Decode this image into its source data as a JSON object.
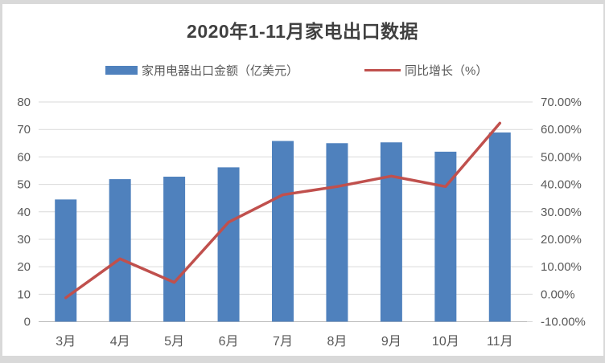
{
  "title": "2020年1-11月家电出口数据",
  "legend": [
    {
      "label": "家用电器出口金额（亿美元）",
      "type": "bar",
      "color": "#4f81bd"
    },
    {
      "label": "同比增长（%）",
      "type": "line",
      "color": "#c0504d"
    }
  ],
  "colors": {
    "bar": "#4f81bd",
    "line": "#c0504d",
    "gridline": "#d9d9d9",
    "axis_baseline": "#bfbfbf",
    "axis_text": "#595959",
    "title_text": "#404040",
    "frame": "#d9d9d9",
    "background": "#ffffff"
  },
  "chart_data": {
    "type": "bar",
    "subtype": "combo-bar-line-dual-axis",
    "title": "2020年1-11月家电出口数据",
    "categories": [
      "3月",
      "4月",
      "5月",
      "6月",
      "7月",
      "8月",
      "9月",
      "10月",
      "11月"
    ],
    "series": [
      {
        "name": "家用电器出口金额（亿美元）",
        "type": "bar",
        "axis": "left",
        "color": "#4f81bd",
        "values": [
          44.5,
          51.9,
          52.8,
          56.2,
          65.8,
          65.0,
          65.3,
          61.9,
          68.9
        ]
      },
      {
        "name": "同比增长（%）",
        "type": "line",
        "axis": "right",
        "color": "#c0504d",
        "values": [
          -1.3,
          12.9,
          4.3,
          26.2,
          36.2,
          39.2,
          43.0,
          39.2,
          62.3
        ]
      }
    ],
    "left_axis": {
      "min": 0,
      "max": 80,
      "step": 10,
      "tick_labels": [
        "0",
        "10",
        "20",
        "30",
        "40",
        "50",
        "60",
        "70",
        "80"
      ]
    },
    "right_axis": {
      "min": -10,
      "max": 70,
      "step": 10,
      "tick_labels": [
        "-10.00%",
        "0.00%",
        "10.00%",
        "20.00%",
        "30.00%",
        "40.00%",
        "50.00%",
        "60.00%",
        "70.00%"
      ]
    },
    "grid": true,
    "legend_position": "top",
    "xlabel": "",
    "ylabel": ""
  }
}
